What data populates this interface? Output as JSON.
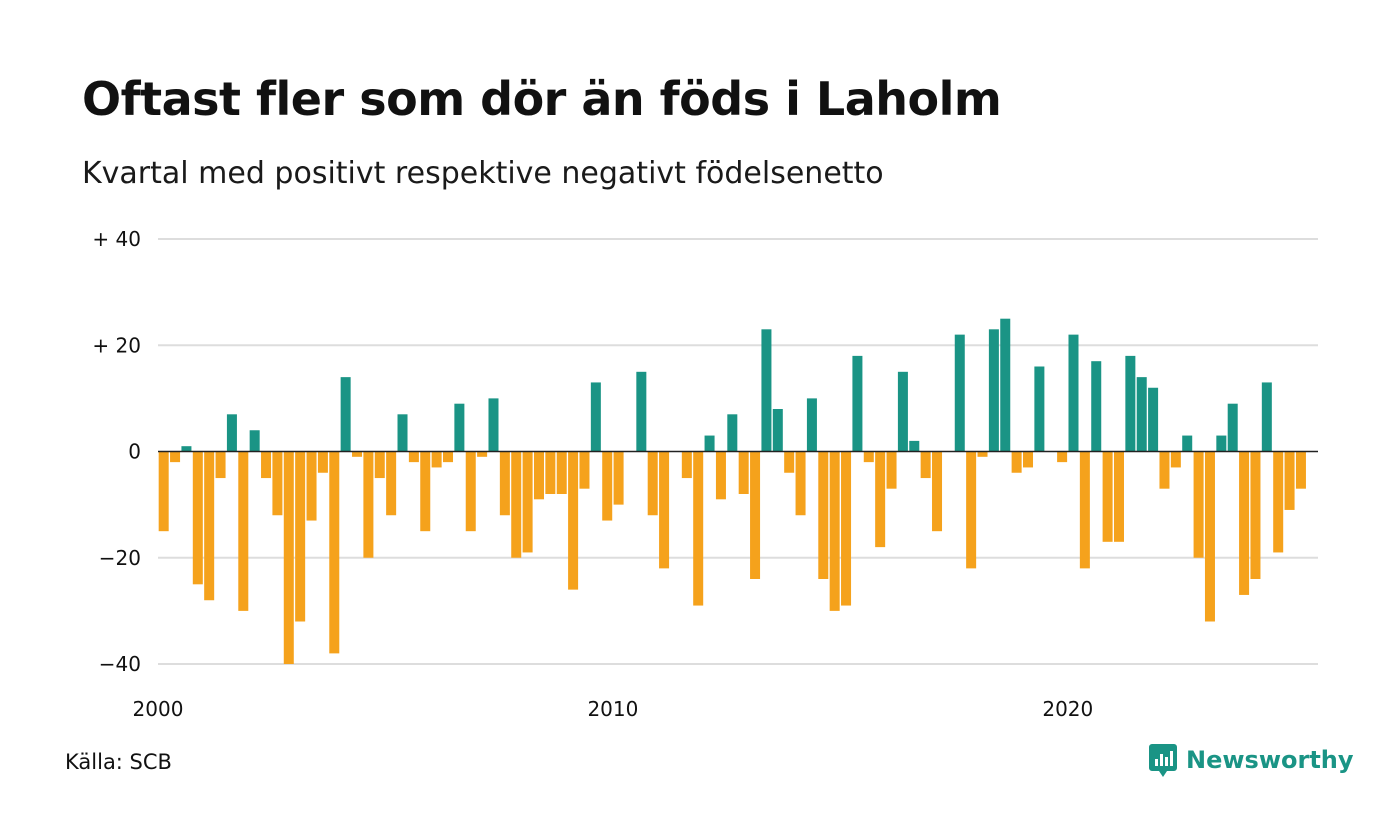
{
  "title": "Oftast fler som dör än föds i Laholm",
  "subtitle": "Kvartal med positivt respektive negativt födelsenetto",
  "source": "Källa: SCB",
  "logo": {
    "text": "Newsworthy",
    "icon": "newsworthy-chart-bubble-icon"
  },
  "colors": {
    "positive": "#1a9485",
    "negative": "#f5a21c",
    "grid": "#dddddd",
    "zero": "#222222"
  },
  "chart_data": {
    "type": "bar",
    "title": "Oftast fler som dör än föds i Laholm",
    "subtitle": "Kvartal med positivt respektive negativt födelsenetto",
    "xlabel": "",
    "ylabel": "",
    "ylim": [
      -40,
      40
    ],
    "xlim": [
      2000,
      2025.5
    ],
    "grid": true,
    "y_ticks": [
      {
        "value": 40,
        "label": "+ 40"
      },
      {
        "value": 20,
        "label": "+ 20"
      },
      {
        "value": 0,
        "label": "0"
      },
      {
        "value": -20,
        "label": "−20"
      },
      {
        "value": -40,
        "label": "−40"
      }
    ],
    "x_ticks": [
      {
        "value": 2000,
        "label": "2000"
      },
      {
        "value": 2010,
        "label": "2010"
      },
      {
        "value": 2020,
        "label": "2020"
      }
    ],
    "start_year": 2000,
    "interval": "quarter",
    "values": [
      -15,
      -2,
      1,
      -25,
      -28,
      -5,
      7,
      -30,
      4,
      -5,
      -12,
      -40,
      -32,
      -13,
      -4,
      -38,
      14,
      -1,
      -20,
      -5,
      -12,
      7,
      -2,
      -15,
      -3,
      -2,
      9,
      -15,
      -1,
      10,
      -12,
      -20,
      -19,
      -9,
      -8,
      -8,
      -26,
      -7,
      13,
      -13,
      -10,
      0,
      15,
      -12,
      -22,
      0,
      -5,
      -29,
      3,
      -9,
      7,
      -8,
      -24,
      23,
      8,
      -4,
      -12,
      10,
      -24,
      -30,
      -29,
      18,
      -2,
      -18,
      -7,
      15,
      2,
      -5,
      -15,
      0,
      22,
      -22,
      -1,
      23,
      25,
      -4,
      -3,
      16,
      0,
      -2,
      22,
      -22,
      17,
      -17,
      -17,
      18,
      14,
      12,
      -7,
      -3,
      3,
      -20,
      -32,
      3,
      9,
      -27,
      -24,
      13,
      -19,
      -11,
      -7
    ]
  }
}
